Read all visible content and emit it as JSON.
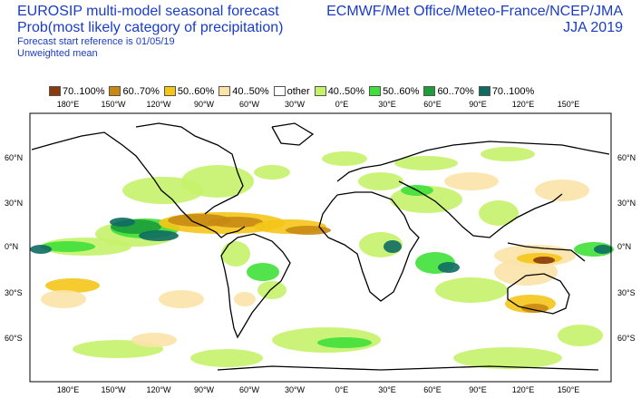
{
  "header": {
    "title_line1": "EUROSIP multi-model seasonal forecast",
    "title_line2": "Prob(most likely category of precipitation)",
    "forecast_reference": "Forecast start reference is 01/05/19",
    "weighting": "Unweighted mean",
    "producers": "ECMWF/Met Office/Meteo-France/NCEP/JMA",
    "season": "JJA 2019"
  },
  "legend": [
    {
      "label": "70..100%",
      "color": "#8b3a0e"
    },
    {
      "label": "60..70%",
      "color": "#c98a14"
    },
    {
      "label": "50..60%",
      "color": "#f5c518"
    },
    {
      "label": "40..50%",
      "color": "#fbe3a8"
    },
    {
      "label": "other",
      "color": "#ffffff"
    },
    {
      "label": "40..50%",
      "color": "#c6f26a"
    },
    {
      "label": "50..60%",
      "color": "#3fe03a"
    },
    {
      "label": "60..70%",
      "color": "#1d9e3a"
    },
    {
      "label": "70..100%",
      "color": "#0f6b62"
    }
  ],
  "axes": {
    "lon_labels": [
      "180°E",
      "150°W",
      "120°W",
      "90°W",
      "60°W",
      "30°W",
      "0°E",
      "30°E",
      "60°E",
      "90°E",
      "120°E",
      "150°E"
    ],
    "lat_labels": [
      "60°N",
      "30°N",
      "0°N",
      "30°S",
      "60°S"
    ]
  }
}
